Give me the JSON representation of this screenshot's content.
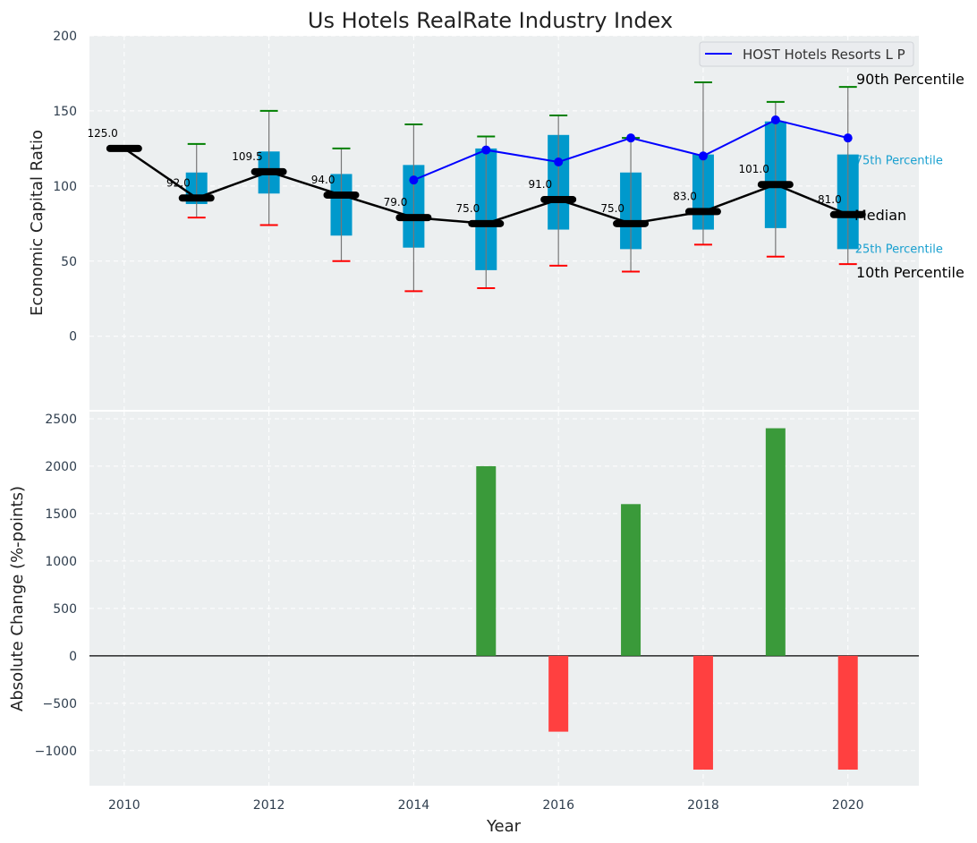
{
  "chart_data": [
    {
      "type": "box",
      "title": "Us Hotels RealRate Industry Index",
      "ylabel": "Economic Capital Ratio",
      "ylim": [
        -49,
        200
      ],
      "xlim": [
        2009.52,
        2020.98
      ],
      "yticks": [
        0,
        50,
        100,
        150,
        200
      ],
      "grid": true,
      "legend": {
        "position": "top-right",
        "entries": [
          "HOST Hotels Resorts L P"
        ]
      },
      "years": [
        2010,
        2011,
        2012,
        2013,
        2014,
        2015,
        2016,
        2017,
        2018,
        2019,
        2020
      ],
      "median": [
        125.0,
        92.0,
        109.5,
        94.0,
        79.0,
        75.0,
        91.0,
        75.0,
        83.0,
        101.0,
        81.0
      ],
      "median_labels": [
        "125.0",
        "92.0",
        "109.5",
        "94.0",
        "79.0",
        "75.0",
        "91.0",
        "75.0",
        "83.0",
        "101.0",
        "81.0"
      ],
      "p10": [
        null,
        79,
        74,
        50,
        30,
        32,
        47,
        43,
        61,
        53,
        48
      ],
      "p25": [
        null,
        88,
        95,
        67,
        59,
        44,
        71,
        58,
        71,
        72,
        58
      ],
      "p75": [
        null,
        109,
        123,
        108,
        114,
        125,
        134,
        109,
        121,
        143,
        121
      ],
      "p90": [
        null,
        128,
        150,
        125,
        141,
        133,
        147,
        132,
        169,
        156,
        166
      ],
      "series": [
        {
          "name": "HOST Hotels Resorts L P",
          "years": [
            2014,
            2015,
            2016,
            2017,
            2018,
            2019,
            2020
          ],
          "values": [
            104,
            124,
            116,
            132,
            120,
            144,
            132
          ]
        }
      ],
      "annotations": {
        "p90": "90th Percentile",
        "p75": "75th Percentile",
        "median": "Median",
        "p25": "25th Percentile",
        "p10": "10th Percentile"
      }
    },
    {
      "type": "bar",
      "xlabel": "Year",
      "ylabel": "Absolute Change (%-points)",
      "ylim": [
        -1370,
        2575
      ],
      "yticks": [
        -1000,
        -500,
        0,
        500,
        1000,
        1500,
        2000,
        2500
      ],
      "ytick_labels": [
        "−1000",
        "−500",
        "0",
        "500",
        "1000",
        "1500",
        "2000",
        "2500"
      ],
      "xticks": [
        2010,
        2012,
        2014,
        2016,
        2018,
        2020
      ],
      "years": [
        2015,
        2016,
        2017,
        2018,
        2019,
        2020
      ],
      "values": [
        2000,
        -800,
        1600,
        -1200,
        2400,
        -1200
      ],
      "colors": {
        "positive": "#3a9a3a",
        "negative": "#ff4040"
      }
    }
  ],
  "colors": {
    "box": "#0099cc",
    "host": "#0000ff",
    "median": "#000000",
    "p90cap": "#008000",
    "p10cap": "#ff0000",
    "bg": "#eceff0",
    "pct_label": "#1aa0d0"
  }
}
